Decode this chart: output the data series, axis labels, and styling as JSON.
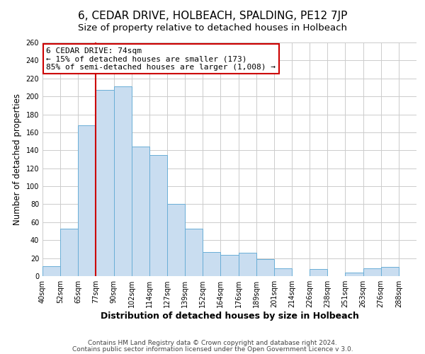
{
  "title": "6, CEDAR DRIVE, HOLBEACH, SPALDING, PE12 7JP",
  "subtitle": "Size of property relative to detached houses in Holbeach",
  "xlabel": "Distribution of detached houses by size in Holbeach",
  "ylabel": "Number of detached properties",
  "bar_labels": [
    "40sqm",
    "52sqm",
    "65sqm",
    "77sqm",
    "90sqm",
    "102sqm",
    "114sqm",
    "127sqm",
    "139sqm",
    "152sqm",
    "164sqm",
    "176sqm",
    "189sqm",
    "201sqm",
    "214sqm",
    "226sqm",
    "238sqm",
    "251sqm",
    "263sqm",
    "276sqm",
    "288sqm"
  ],
  "bar_values": [
    11,
    53,
    168,
    207,
    211,
    144,
    135,
    80,
    53,
    27,
    24,
    26,
    19,
    9,
    0,
    8,
    0,
    4,
    9,
    10
  ],
  "bar_color": "#c9ddf0",
  "bar_edge_color": "#6aaed6",
  "annotation_text": "6 CEDAR DRIVE: 74sqm\n← 15% of detached houses are smaller (173)\n85% of semi-detached houses are larger (1,008) →",
  "annotation_box_color": "#ffffff",
  "annotation_box_edge": "#cc0000",
  "vline_color": "#cc0000",
  "ylim": [
    0,
    260
  ],
  "footer1": "Contains HM Land Registry data © Crown copyright and database right 2024.",
  "footer2": "Contains public sector information licensed under the Open Government Licence v 3.0.",
  "background_color": "#ffffff",
  "grid_color": "#cccccc",
  "title_fontsize": 11,
  "subtitle_fontsize": 9.5,
  "xlabel_fontsize": 9,
  "ylabel_fontsize": 8.5,
  "tick_fontsize": 7,
  "annotation_fontsize": 8,
  "footer_fontsize": 6.5
}
